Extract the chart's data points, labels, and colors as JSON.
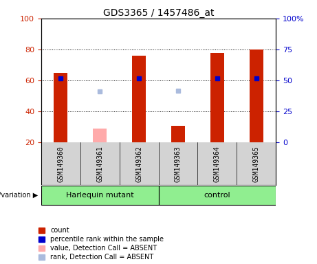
{
  "title": "GDS3365 / 1457486_at",
  "samples": [
    "GSM149360",
    "GSM149361",
    "GSM149362",
    "GSM149363",
    "GSM149364",
    "GSM149365"
  ],
  "count_values": [
    65,
    null,
    76,
    31,
    78,
    80
  ],
  "rank_values": [
    52,
    null,
    52,
    null,
    52,
    52
  ],
  "absent_count_values": [
    null,
    29,
    null,
    null,
    null,
    null
  ],
  "absent_rank_values": [
    null,
    41,
    null,
    42,
    null,
    null
  ],
  "ylim_left": [
    20,
    100
  ],
  "ylim_right": [
    0,
    100
  ],
  "yticks_left": [
    20,
    40,
    60,
    80,
    100
  ],
  "ytick_labels_left": [
    "20",
    "40",
    "60",
    "80",
    "100"
  ],
  "yticks_right": [
    0,
    25,
    50,
    75,
    100
  ],
  "ytick_labels_right": [
    "0",
    "25",
    "50",
    "75",
    "100%"
  ],
  "grid_lines": [
    40,
    60,
    80
  ],
  "bar_color": "#cc2200",
  "rank_color": "#0000cc",
  "absent_bar_color": "#ffaaaa",
  "absent_rank_color": "#aabbdd",
  "background_plot": "#ffffff",
  "background_label": "#d3d3d3",
  "background_group": "#90ee90",
  "bar_width": 0.35,
  "left_tick_color": "#cc2200",
  "right_tick_color": "#0000cc",
  "legend_labels": [
    "count",
    "percentile rank within the sample",
    "value, Detection Call = ABSENT",
    "rank, Detection Call = ABSENT"
  ],
  "group_info": [
    {
      "label": "Harlequin mutant",
      "start": 0,
      "end": 2
    },
    {
      "label": "control",
      "start": 3,
      "end": 5
    }
  ],
  "genotype_label": "genotype/variation"
}
